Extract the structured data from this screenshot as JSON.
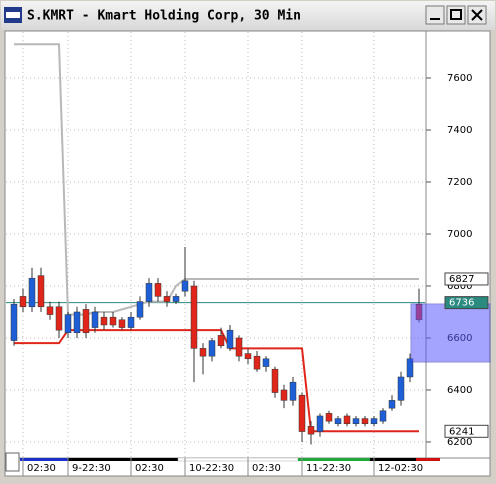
{
  "window_title": "S.KMRT - Kmart Holding Corp, 30 Min",
  "chart_data": {
    "type": "candlestick",
    "categories": [
      null,
      "02:30",
      null,
      null,
      null,
      null,
      "9-22:30",
      null,
      null,
      null,
      null,
      null,
      null,
      "02:30",
      null,
      null,
      null,
      null,
      null,
      "10-22:30",
      null,
      null,
      null,
      null,
      null,
      null,
      "02:30",
      null,
      null,
      null,
      null,
      null,
      "11-22:30",
      null,
      null,
      null,
      null,
      null,
      null,
      null,
      "12-02:30",
      null,
      null,
      null,
      null,
      null
    ],
    "open": [
      6590,
      6760,
      6720,
      6840,
      6720,
      6720,
      6620,
      6620,
      6710,
      6640,
      6680,
      6680,
      6670,
      6640,
      6680,
      6740,
      6810,
      6760,
      6740,
      6780,
      6800,
      6560,
      6530,
      6610,
      6560,
      6600,
      6540,
      6530,
      6490,
      6480,
      6400,
      6360,
      6380,
      6260,
      6240,
      6310,
      6270,
      6300,
      6270,
      6290,
      6270,
      6280,
      6330,
      6360,
      6450,
      6730
    ],
    "high": [
      6750,
      6790,
      6870,
      6870,
      6740,
      6740,
      6700,
      6720,
      6730,
      6720,
      6700,
      6700,
      6680,
      6700,
      6760,
      6830,
      6830,
      6780,
      6770,
      6950,
      6820,
      6580,
      6600,
      6640,
      6650,
      6610,
      6560,
      6550,
      6530,
      6490,
      6420,
      6450,
      6390,
      6280,
      6310,
      6320,
      6300,
      6310,
      6300,
      6300,
      6300,
      6330,
      6380,
      6470,
      6540,
      6790
    ],
    "low": [
      6570,
      6700,
      6700,
      6700,
      6670,
      6600,
      6600,
      6600,
      6600,
      6620,
      6630,
      6640,
      6630,
      6630,
      6670,
      6720,
      6740,
      6720,
      6730,
      6760,
      6430,
      6460,
      6510,
      6560,
      6550,
      6510,
      6500,
      6470,
      6470,
      6370,
      6330,
      6340,
      6200,
      6190,
      6220,
      6270,
      6260,
      6260,
      6260,
      6260,
      6260,
      6270,
      6320,
      6340,
      6430,
      6660
    ],
    "close": [
      6730,
      6720,
      6830,
      6720,
      6690,
      6630,
      6690,
      6700,
      6620,
      6700,
      6650,
      6650,
      6640,
      6680,
      6740,
      6810,
      6760,
      6740,
      6760,
      6820,
      6560,
      6530,
      6590,
      6570,
      6630,
      6530,
      6520,
      6480,
      6520,
      6390,
      6360,
      6430,
      6240,
      6230,
      6300,
      6280,
      6290,
      6270,
      6290,
      6270,
      6290,
      6320,
      6360,
      6450,
      6520,
      6670
    ],
    "up_color": "#1e5fd8",
    "down_color": "#e0261a",
    "overlays": [
      {
        "color": "#b8b8b8",
        "values": [
          7730,
          7730,
          7730,
          7730,
          7730,
          7730,
          6690,
          6690,
          6690,
          6700,
          6700,
          6700,
          6710,
          6720,
          6730,
          6740,
          6740,
          6740,
          6800,
          6827,
          6827,
          6827,
          6827,
          6827,
          6827,
          6827,
          6827,
          6827,
          6827,
          6827,
          6827,
          6827,
          6827,
          6827,
          6827,
          6827,
          6827,
          6827,
          6827,
          6827,
          6827,
          6827,
          6827,
          6827,
          6827,
          6827
        ]
      },
      {
        "color": "#e0261a",
        "values": [
          6580,
          6580,
          6580,
          6580,
          6580,
          6580,
          6630,
          6630,
          6630,
          6630,
          6630,
          6630,
          6630,
          6630,
          6630,
          6630,
          6630,
          6630,
          6630,
          6630,
          6630,
          6630,
          6630,
          6630,
          6560,
          6560,
          6560,
          6560,
          6560,
          6560,
          6560,
          6560,
          6560,
          6241,
          6241,
          6241,
          6241,
          6241,
          6241,
          6241,
          6241,
          6241,
          6241,
          6241,
          6241,
          6241
        ]
      }
    ],
    "reference_line": {
      "value": 6736,
      "color": "#2a8a80"
    },
    "price_markers": [
      6827,
      6736,
      6241
    ],
    "ylim": [
      6146,
      7777
    ],
    "yticks": [
      6200,
      6400,
      6600,
      6800,
      7000,
      7200,
      7400,
      7600
    ],
    "grid": true
  }
}
